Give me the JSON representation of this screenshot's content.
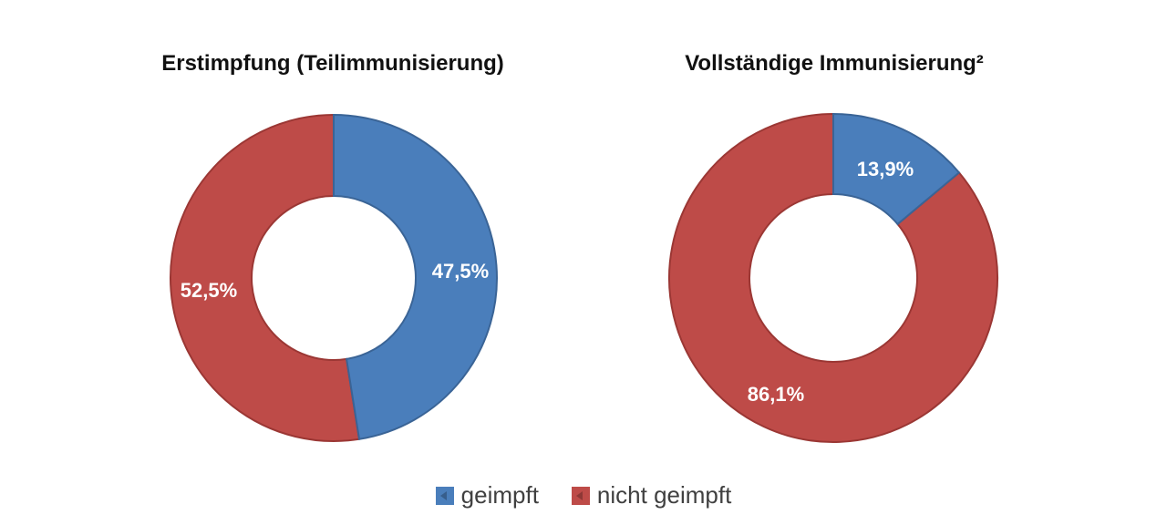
{
  "chart_data": [
    {
      "type": "pie",
      "variant": "donut",
      "title": "Erstimpfung (Teilimmunisierung)",
      "categories": [
        "geimpft",
        "nicht geimpft"
      ],
      "values": [
        47.5,
        52.5
      ],
      "labels": [
        "47,5%",
        "52,5%"
      ],
      "colors": [
        "#4a7ebb",
        "#be4b48"
      ],
      "legend_position": "bottom"
    },
    {
      "type": "pie",
      "variant": "donut",
      "title": "Vollständige Immunisierung²",
      "categories": [
        "geimpft",
        "nicht geimpft"
      ],
      "values": [
        13.9,
        86.1
      ],
      "labels": [
        "13,9%",
        "86,1%"
      ],
      "colors": [
        "#4a7ebb",
        "#be4b48"
      ],
      "legend_position": "bottom"
    }
  ],
  "titles": {
    "left": "Erstimpfung (Teilimmunisierung)",
    "right": "Vollständige Immunisierung²"
  },
  "labels": {
    "left_vaccinated": "47,5%",
    "left_not_vaccinated": "52,5%",
    "right_vaccinated": "13,9%",
    "right_not_vaccinated": "86,1%"
  },
  "legend": {
    "items": [
      {
        "label": "geimpft",
        "color": "#4a7ebb"
      },
      {
        "label": "nicht geimpft",
        "color": "#be4b48"
      }
    ]
  },
  "colors": {
    "vaccinated": "#4a7ebb",
    "not_vaccinated": "#be4b48"
  }
}
